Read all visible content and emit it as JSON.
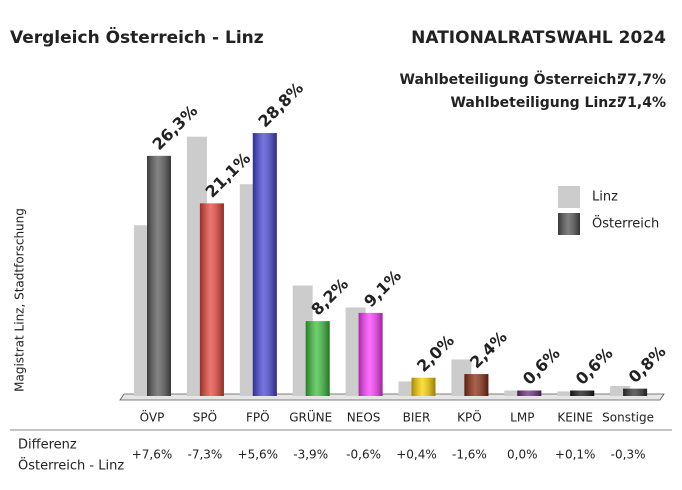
{
  "chart_data": {
    "type": "bar",
    "title": "Vergleich Österreich - Linz",
    "subtitle": "NATIONALRATSWAHL 2024",
    "turnout": [
      {
        "label": "Wahlbeteiligung Österreich:",
        "value": "77,7%"
      },
      {
        "label": "Wahlbeteiligung Linz:",
        "value": "71,4%"
      }
    ],
    "source": "Magistrat Linz, Stadtforschung",
    "categories": [
      "ÖVP",
      "SPÖ",
      "FPÖ",
      "GRÜNE",
      "NEOS",
      "BIER",
      "KPÖ",
      "LMP",
      "KEINE",
      "Sonstige"
    ],
    "series": [
      {
        "name": "Linz",
        "color": "#cccccc",
        "values": [
          18.7,
          28.4,
          23.2,
          12.1,
          9.7,
          1.6,
          4.0,
          0.6,
          0.5,
          1.1
        ]
      },
      {
        "name": "Österreich",
        "color": "#555555",
        "colors": [
          "#5a5a5a",
          "#e8473c",
          "#4747d6",
          "#3cbf3c",
          "#ff3dff",
          "#ffd200",
          "#8a2c12",
          "#6b2b7b",
          "#151515",
          "#333333"
        ],
        "values": [
          26.3,
          21.1,
          28.8,
          8.2,
          9.1,
          2.0,
          2.4,
          0.6,
          0.6,
          0.8
        ],
        "value_labels": [
          "26,3%",
          "21,1%",
          "28,8%",
          "8,2%",
          "9,1%",
          "2,0%",
          "2,4%",
          "0,6%",
          "0,6%",
          "0,8%"
        ]
      }
    ],
    "difference": {
      "title": [
        "Differenz",
        "Österreich - Linz"
      ],
      "values": [
        7.6,
        -7.3,
        5.6,
        -3.9,
        -0.6,
        0.4,
        -1.6,
        0.0,
        0.1,
        -0.3
      ],
      "value_labels": [
        "+7,6%",
        "-7,3%",
        "+5,6%",
        "-3,9%",
        "-0,6%",
        "+0,4%",
        "-1,6%",
        "0,0%",
        "+0,1%",
        "-0,3%"
      ],
      "colors": [
        "#222222",
        "#e8473c",
        "#1f3598",
        "#1f7a1f",
        "#e020e0",
        "#1f5fb0",
        "#c0261e",
        "#5a1a5a",
        "#111111",
        "#111111"
      ]
    }
  }
}
